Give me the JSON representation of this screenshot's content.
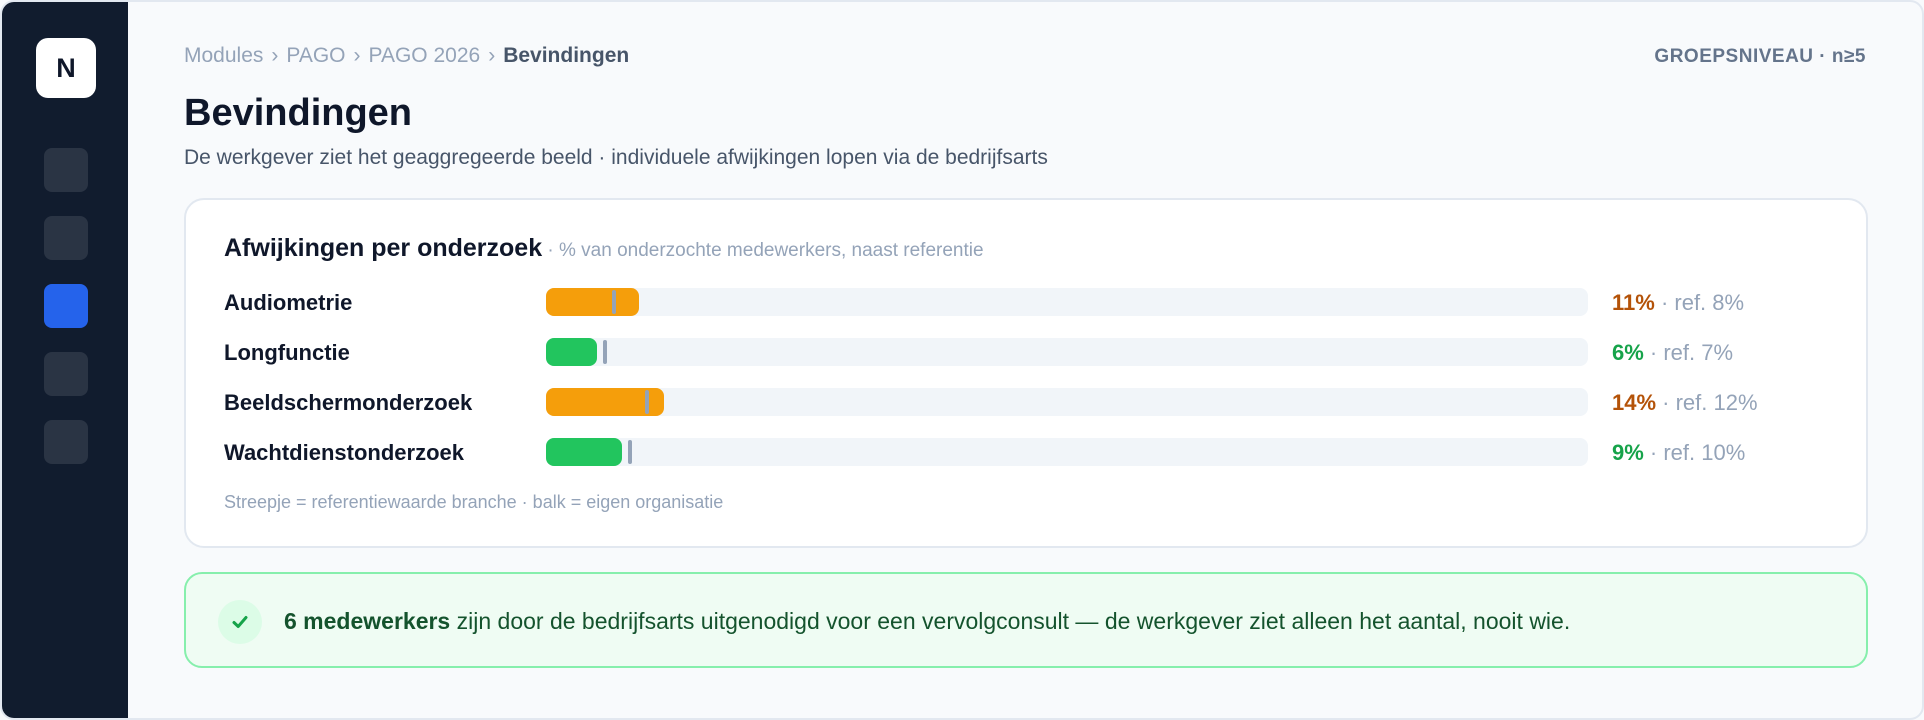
{
  "sidebar": {
    "logo": "N",
    "items": [
      {
        "name": "nav-item-1",
        "active": false
      },
      {
        "name": "nav-item-2",
        "active": false
      },
      {
        "name": "nav-item-3",
        "active": true
      },
      {
        "name": "nav-item-4",
        "active": false
      },
      {
        "name": "nav-item-5",
        "active": false
      }
    ]
  },
  "breadcrumb": [
    "Modules",
    "PAGO",
    "PAGO 2026",
    "Bevindingen"
  ],
  "breadcrumb_separator": "›",
  "privacy_level": "GROEPSNIVEAU · n≥5",
  "page": {
    "title": "Bevindingen",
    "subtitle": "De werkgever ziet het geaggregeerde beeld · individuele afwijkingen lopen via de bedrijfsarts"
  },
  "findings": {
    "title": "Afwijkingen per onderzoek",
    "note": " · % van onderzochte medewerkers, naast referentie",
    "legend": "Streepje = referentiewaarde branche · balk = eigen organisatie",
    "rows": [
      {
        "label": "Audiometrie",
        "value_text": "11%",
        "ref_text": " · ref. 8%",
        "value": 11,
        "ref": 8,
        "status": "above"
      },
      {
        "label": "Longfunctie",
        "value_text": "6%",
        "ref_text": " · ref. 7%",
        "value": 6,
        "ref": 7,
        "status": "below"
      },
      {
        "label": "Beeldschermonderzoek",
        "value_text": "14%",
        "ref_text": " · ref. 12%",
        "value": 14,
        "ref": 12,
        "status": "above"
      },
      {
        "label": "Wachtdienstonderzoek",
        "value_text": "9%",
        "ref_text": " · ref. 10%",
        "value": 9,
        "ref": 10,
        "status": "below"
      }
    ],
    "scale_max_percent": 100
  },
  "colors": {
    "above_bar": "#f59e0b",
    "above_text": "#b45309",
    "below_bar": "#22c55e",
    "below_text": "#16a34a",
    "accent": "#2563eb"
  },
  "notice": {
    "icon": "check-icon",
    "strong": "6 medewerkers",
    "text": " zijn door de bedrijfsarts uitgenodigd voor een vervolgconsult — de werkgever ziet alleen het aantal, nooit wie."
  }
}
